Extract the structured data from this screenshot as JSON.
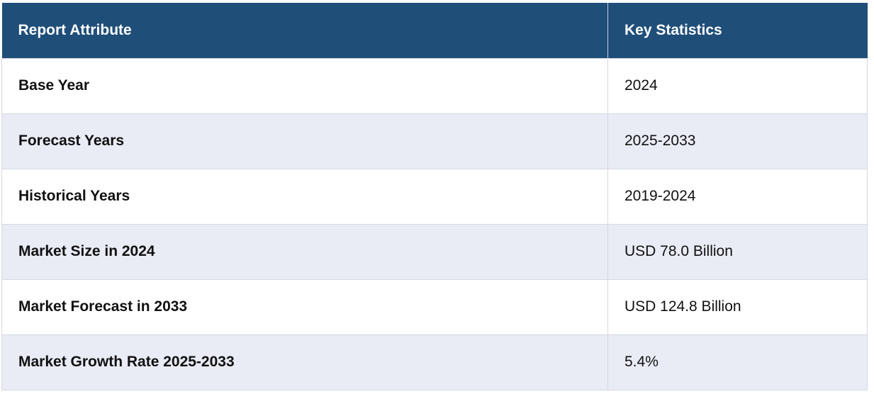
{
  "table": {
    "headers": [
      "Report Attribute",
      "Key Statistics"
    ],
    "rows": [
      {
        "attribute": "Base Year",
        "value": "2024"
      },
      {
        "attribute": "Forecast Years",
        "value": "2025-2033"
      },
      {
        "attribute": "Historical Years",
        "value": "2019-2024"
      },
      {
        "attribute": "Market Size in 2024",
        "value": "USD 78.0 Billion"
      },
      {
        "attribute": "Market Forecast in 2033",
        "value": "USD 124.8 Billion"
      },
      {
        "attribute": "Market Growth Rate 2025-2033",
        "value": "5.4%"
      }
    ]
  },
  "colors": {
    "header_bg": "#1f4e79",
    "header_text": "#ffffff",
    "row_alt_bg": "#e9ebf5",
    "row_bg": "#ffffff"
  }
}
